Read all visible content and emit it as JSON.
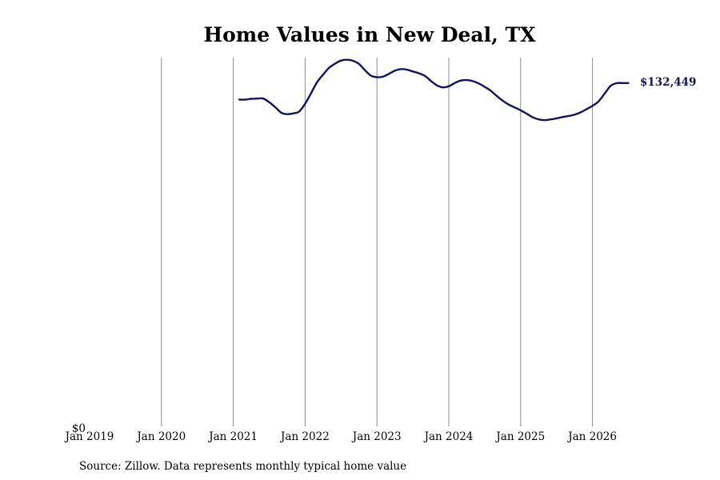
{
  "chart_data": {
    "type": "line",
    "title": "Home Values in New Deal, TX",
    "xlabel": "",
    "ylabel": "",
    "x_ticks": [
      "Jan 2019",
      "Jan 2020",
      "Jan 2021",
      "Jan 2022",
      "Jan 2023",
      "Jan 2024",
      "Jan 2025",
      "Jan 2026"
    ],
    "y_ticks": [
      "$0"
    ],
    "xlim": [
      "2019-01",
      "2026-07"
    ],
    "ylim": [
      0,
      141000
    ],
    "grid": "vertical",
    "legend": "none",
    "line_color": "#12125e",
    "end_label": "$132,449",
    "series": [
      {
        "x": [
          "2021-02",
          "2021-03",
          "2021-04",
          "2021-05",
          "2021-06",
          "2021-07",
          "2021-08",
          "2021-09",
          "2021-10",
          "2021-11",
          "2021-12",
          "2022-01",
          "2022-02",
          "2022-03",
          "2022-04",
          "2022-05",
          "2022-06",
          "2022-07",
          "2022-08",
          "2022-09",
          "2022-10",
          "2022-11",
          "2022-12",
          "2023-01",
          "2023-02",
          "2023-03",
          "2023-04",
          "2023-05",
          "2023-06",
          "2023-07",
          "2023-08",
          "2023-09",
          "2023-10",
          "2023-11",
          "2023-12",
          "2024-01",
          "2024-02",
          "2024-03",
          "2024-04",
          "2024-05",
          "2024-06",
          "2024-07",
          "2024-08",
          "2024-09",
          "2024-10",
          "2024-11",
          "2024-12",
          "2025-01",
          "2025-02",
          "2025-03",
          "2025-04",
          "2025-05",
          "2025-06",
          "2025-07",
          "2025-08",
          "2025-09",
          "2025-10",
          "2025-11",
          "2025-12",
          "2026-01",
          "2026-02",
          "2026-03",
          "2026-04",
          "2026-05",
          "2026-06",
          "2026-07"
        ],
        "y": [
          126100,
          126100,
          126400,
          126500,
          126500,
          125100,
          123200,
          121100,
          120500,
          120800,
          121500,
          124500,
          128600,
          132800,
          135700,
          138300,
          139900,
          141100,
          141400,
          141000,
          139800,
          137400,
          135300,
          134700,
          134900,
          136000,
          137200,
          137800,
          137600,
          136900,
          136200,
          135200,
          133300,
          131600,
          130800,
          131200,
          132500,
          133400,
          133600,
          133200,
          132300,
          131000,
          129500,
          127500,
          125700,
          124200,
          123100,
          122000,
          120700,
          119300,
          118500,
          118200,
          118500,
          118900,
          119400,
          119800,
          120300,
          121200,
          122400,
          123700,
          125400,
          128300,
          131300,
          132400,
          132449,
          132449
        ]
      }
    ],
    "source_note": "Source: Zillow. Data represents monthly typical home value"
  }
}
